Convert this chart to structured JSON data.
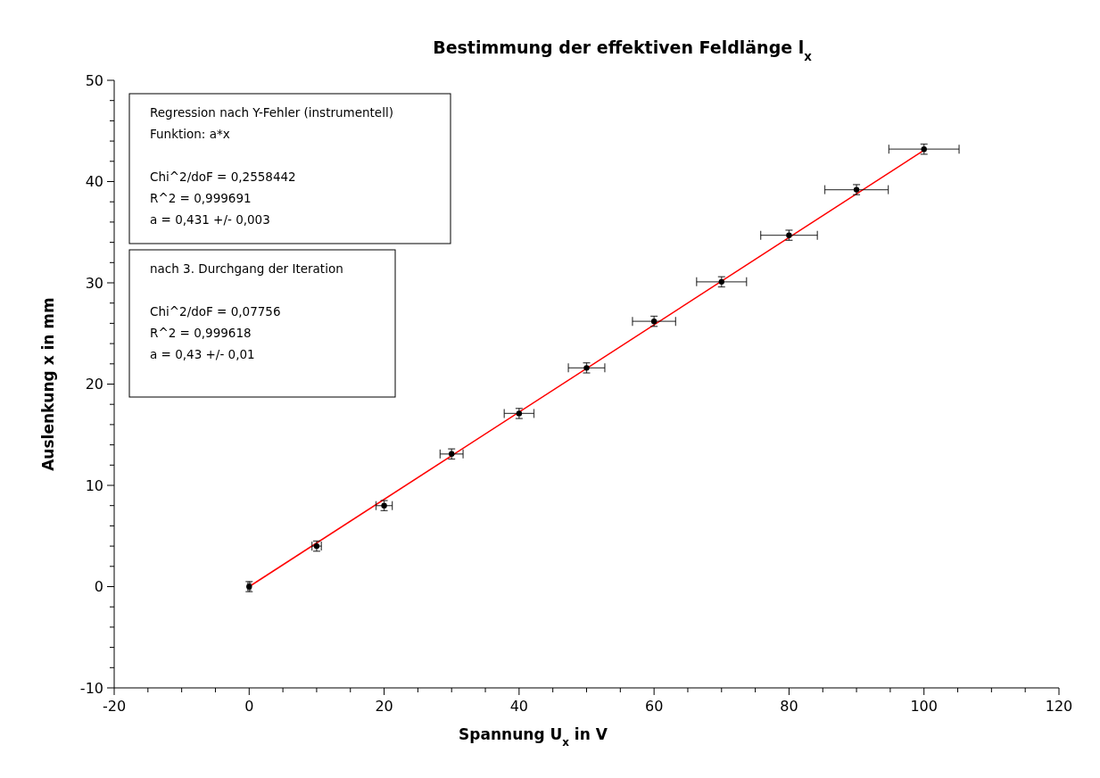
{
  "chart_data": {
    "type": "scatter",
    "title": "Bestimmung der effektiven Feldlänge l$_{x}$",
    "xlabel": "Spannung U$_{x}$ in V",
    "ylabel": "Auslenkung x in mm",
    "xlim": [
      -20,
      120
    ],
    "ylim": [
      -10,
      50
    ],
    "xticks": [
      -20,
      {
        "value": -15,
        "label": null
      },
      {
        "value": -10,
        "label": null
      },
      {
        "value": -5,
        "label": null
      },
      0,
      {
        "value": 5,
        "label": null
      },
      {
        "value": 10,
        "label": null
      },
      {
        "value": 15,
        "label": null
      },
      20,
      {
        "value": 25,
        "label": null
      },
      {
        "value": 30,
        "label": null
      },
      {
        "value": 35,
        "label": null
      },
      40,
      {
        "value": 45,
        "label": null
      },
      {
        "value": 50,
        "label": null
      },
      {
        "value": 55,
        "label": null
      },
      60,
      {
        "value": 65,
        "label": null
      },
      {
        "value": 70,
        "label": null
      },
      {
        "value": 75,
        "label": null
      },
      80,
      {
        "value": 85,
        "label": null
      },
      {
        "value": 90,
        "label": null
      },
      {
        "value": 95,
        "label": null
      },
      100,
      {
        "value": 105,
        "label": null
      },
      {
        "value": 110,
        "label": null
      },
      {
        "value": 115,
        "label": null
      },
      120
    ],
    "yticks": [
      -10,
      {
        "value": -8,
        "label": null
      },
      {
        "value": -6,
        "label": null
      },
      {
        "value": -4,
        "label": null
      },
      {
        "value": -2,
        "label": null
      },
      0,
      {
        "value": 2,
        "label": null
      },
      {
        "value": 4,
        "label": null
      },
      {
        "value": 6,
        "label": null
      },
      {
        "value": 8,
        "label": null
      },
      10,
      {
        "value": 12,
        "label": null
      },
      {
        "value": 14,
        "label": null
      },
      {
        "value": 16,
        "label": null
      },
      {
        "value": 18,
        "label": null
      },
      20,
      {
        "value": 22,
        "label": null
      },
      {
        "value": 24,
        "label": null
      },
      {
        "value": 26,
        "label": null
      },
      {
        "value": 28,
        "label": null
      },
      30,
      {
        "value": 32,
        "label": null
      },
      {
        "value": 34,
        "label": null
      },
      {
        "value": 36,
        "label": null
      },
      {
        "value": 38,
        "label": null
      },
      40,
      {
        "value": 42,
        "label": null
      },
      {
        "value": 44,
        "label": null
      },
      {
        "value": 46,
        "label": null
      },
      {
        "value": 48,
        "label": null
      },
      50
    ],
    "series": [
      {
        "type": "line",
        "marker": "none",
        "color": "#ff0000",
        "x": [
          0,
          100
        ],
        "values": [
          0,
          43.1
        ]
      },
      {
        "marker": "circle",
        "color": "#000000",
        "x": [
          0,
          10,
          20,
          30,
          40,
          50,
          60,
          70,
          80,
          90,
          100
        ],
        "values": [
          0,
          4.0,
          8.0,
          13.1,
          17.1,
          21.6,
          26.2,
          30.1,
          34.7,
          39.2,
          43.2
        ],
        "errors": [
          0.5,
          0.5,
          0.5,
          0.5,
          0.5,
          0.5,
          0.5,
          0.5,
          0.5,
          0.5,
          0.5
        ],
        "xerrors": [
          0.2,
          0.7,
          1.2,
          1.7,
          2.2,
          2.7,
          3.2,
          3.7,
          4.2,
          4.7,
          5.2
        ]
      }
    ],
    "annotations": [
      "Regression nach Y-Fehler (instrumentell)\nFunktion: a*x\n\nChi^2/doF = 0,2558442\nR^2 = 0,999691\na = 0,431 +/- 0,003",
      "nach 3. Durchgang der Iteration\n\nChi^2/doF = 0,07756\nR^2 = 0,999618\na = 0,43 +/- 0,01"
    ]
  }
}
